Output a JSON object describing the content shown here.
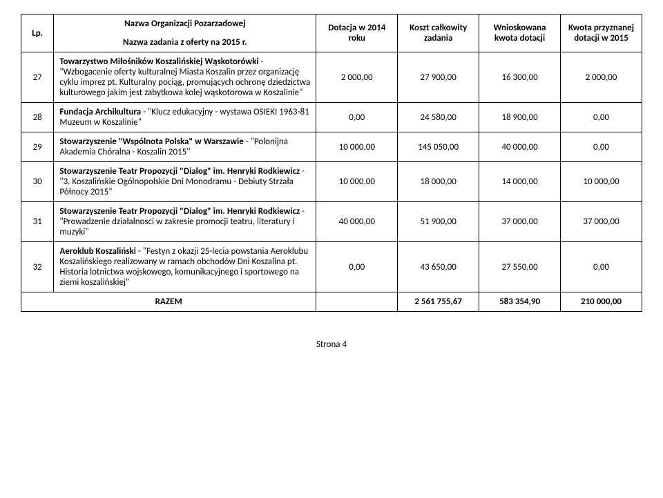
{
  "header": {
    "lp": "Lp.",
    "nazwa_org": "Nazwa Organizacji Pozarzadowej",
    "nazwa_zad": "Nazwa zadania z oferty na 2015 r.",
    "dotacja_2014": "Dotacja w 2014 roku",
    "koszt_calk": "Koszt całkowity zadania",
    "wnioskowana": "Wnioskowana kwota dotacji",
    "kwota_przyzn": "Kwota przyznanej dotacji w 2015"
  },
  "rows": [
    {
      "num": "27",
      "org": "Towarzystwo Miłośników Koszalińskiej Wąskotorówki",
      "task": " - \"Wzbogacenie oferty kulturalnej Miasta Koszalin przez organizację cyklu imprez pt. Kulturalny pociąg, promujących ochronę dziedzictwa kulturowego jakim jest zabytkowa kolej wąskotorowa w Koszalinie\"",
      "v1": "2 000,00",
      "v2": "27 900,00",
      "v3": "16 300,00",
      "v4": "2 000,00"
    },
    {
      "num": "28",
      "org": "Fundacja Archikultura",
      "task": " - \"Klucz edukacyjny - wystawa OSIEKI 1963-81 Muzeum w Koszalinie\"",
      "v1": "0,00",
      "v2": "24 580,00",
      "v3": "18 900,00",
      "v4": "0,00"
    },
    {
      "num": "29",
      "org": "Stowarzyszenie \"Wspólnota Polska\" w Warszawie",
      "task": " - \"Polonijna Akademia Chóralna - Koszalin 2015\"",
      "v1": "10 000,00",
      "v2": "145 050,00",
      "v3": "40 000,00",
      "v4": "0,00"
    },
    {
      "num": "30",
      "org": "Stowarzyszenie Teatr Propozycji \"Dialog\" im. Henryki Rodkiewicz",
      "task": " - \"3. Koszalińskie Ogólnopolskie Dni Monodramu - Debiuty Strzała Północy 2015\"",
      "v1": "10 000,00",
      "v2": "18 000,00",
      "v3": "14 000,00",
      "v4": "10 000,00"
    },
    {
      "num": "31",
      "org": "Stowarzyszenie Teatr Propozycji \"Dialog\" im. Henryki Rodkiewicz",
      "task": " - \"Prowadzenie działalnosci w zakresie promocji teatru, literatury i muzyki\"",
      "v1": "40 000,00",
      "v2": "51 900,00",
      "v3": "37 000,00",
      "v4": "37 000,00"
    },
    {
      "num": "32",
      "org": "Aeroklub Koszaliński",
      "task": " - \"Festyn z okazji 25-lecia powstania Aeroklubu Koszalińskiego realizowany w ramach obchodów Dni Koszalina pt. Historia lotnictwa wojskowego, komunikacyjnego i sportowego na ziemi koszalińskiej\"",
      "v1": "0,00",
      "v2": "43 650,00",
      "v3": "27 550,00",
      "v4": "0,00"
    }
  ],
  "totals": {
    "label": "RAZEM",
    "v2": "2 561 755,67",
    "v3": "583 354,90",
    "v4": "210 000,00"
  },
  "footer": "Strona 4"
}
